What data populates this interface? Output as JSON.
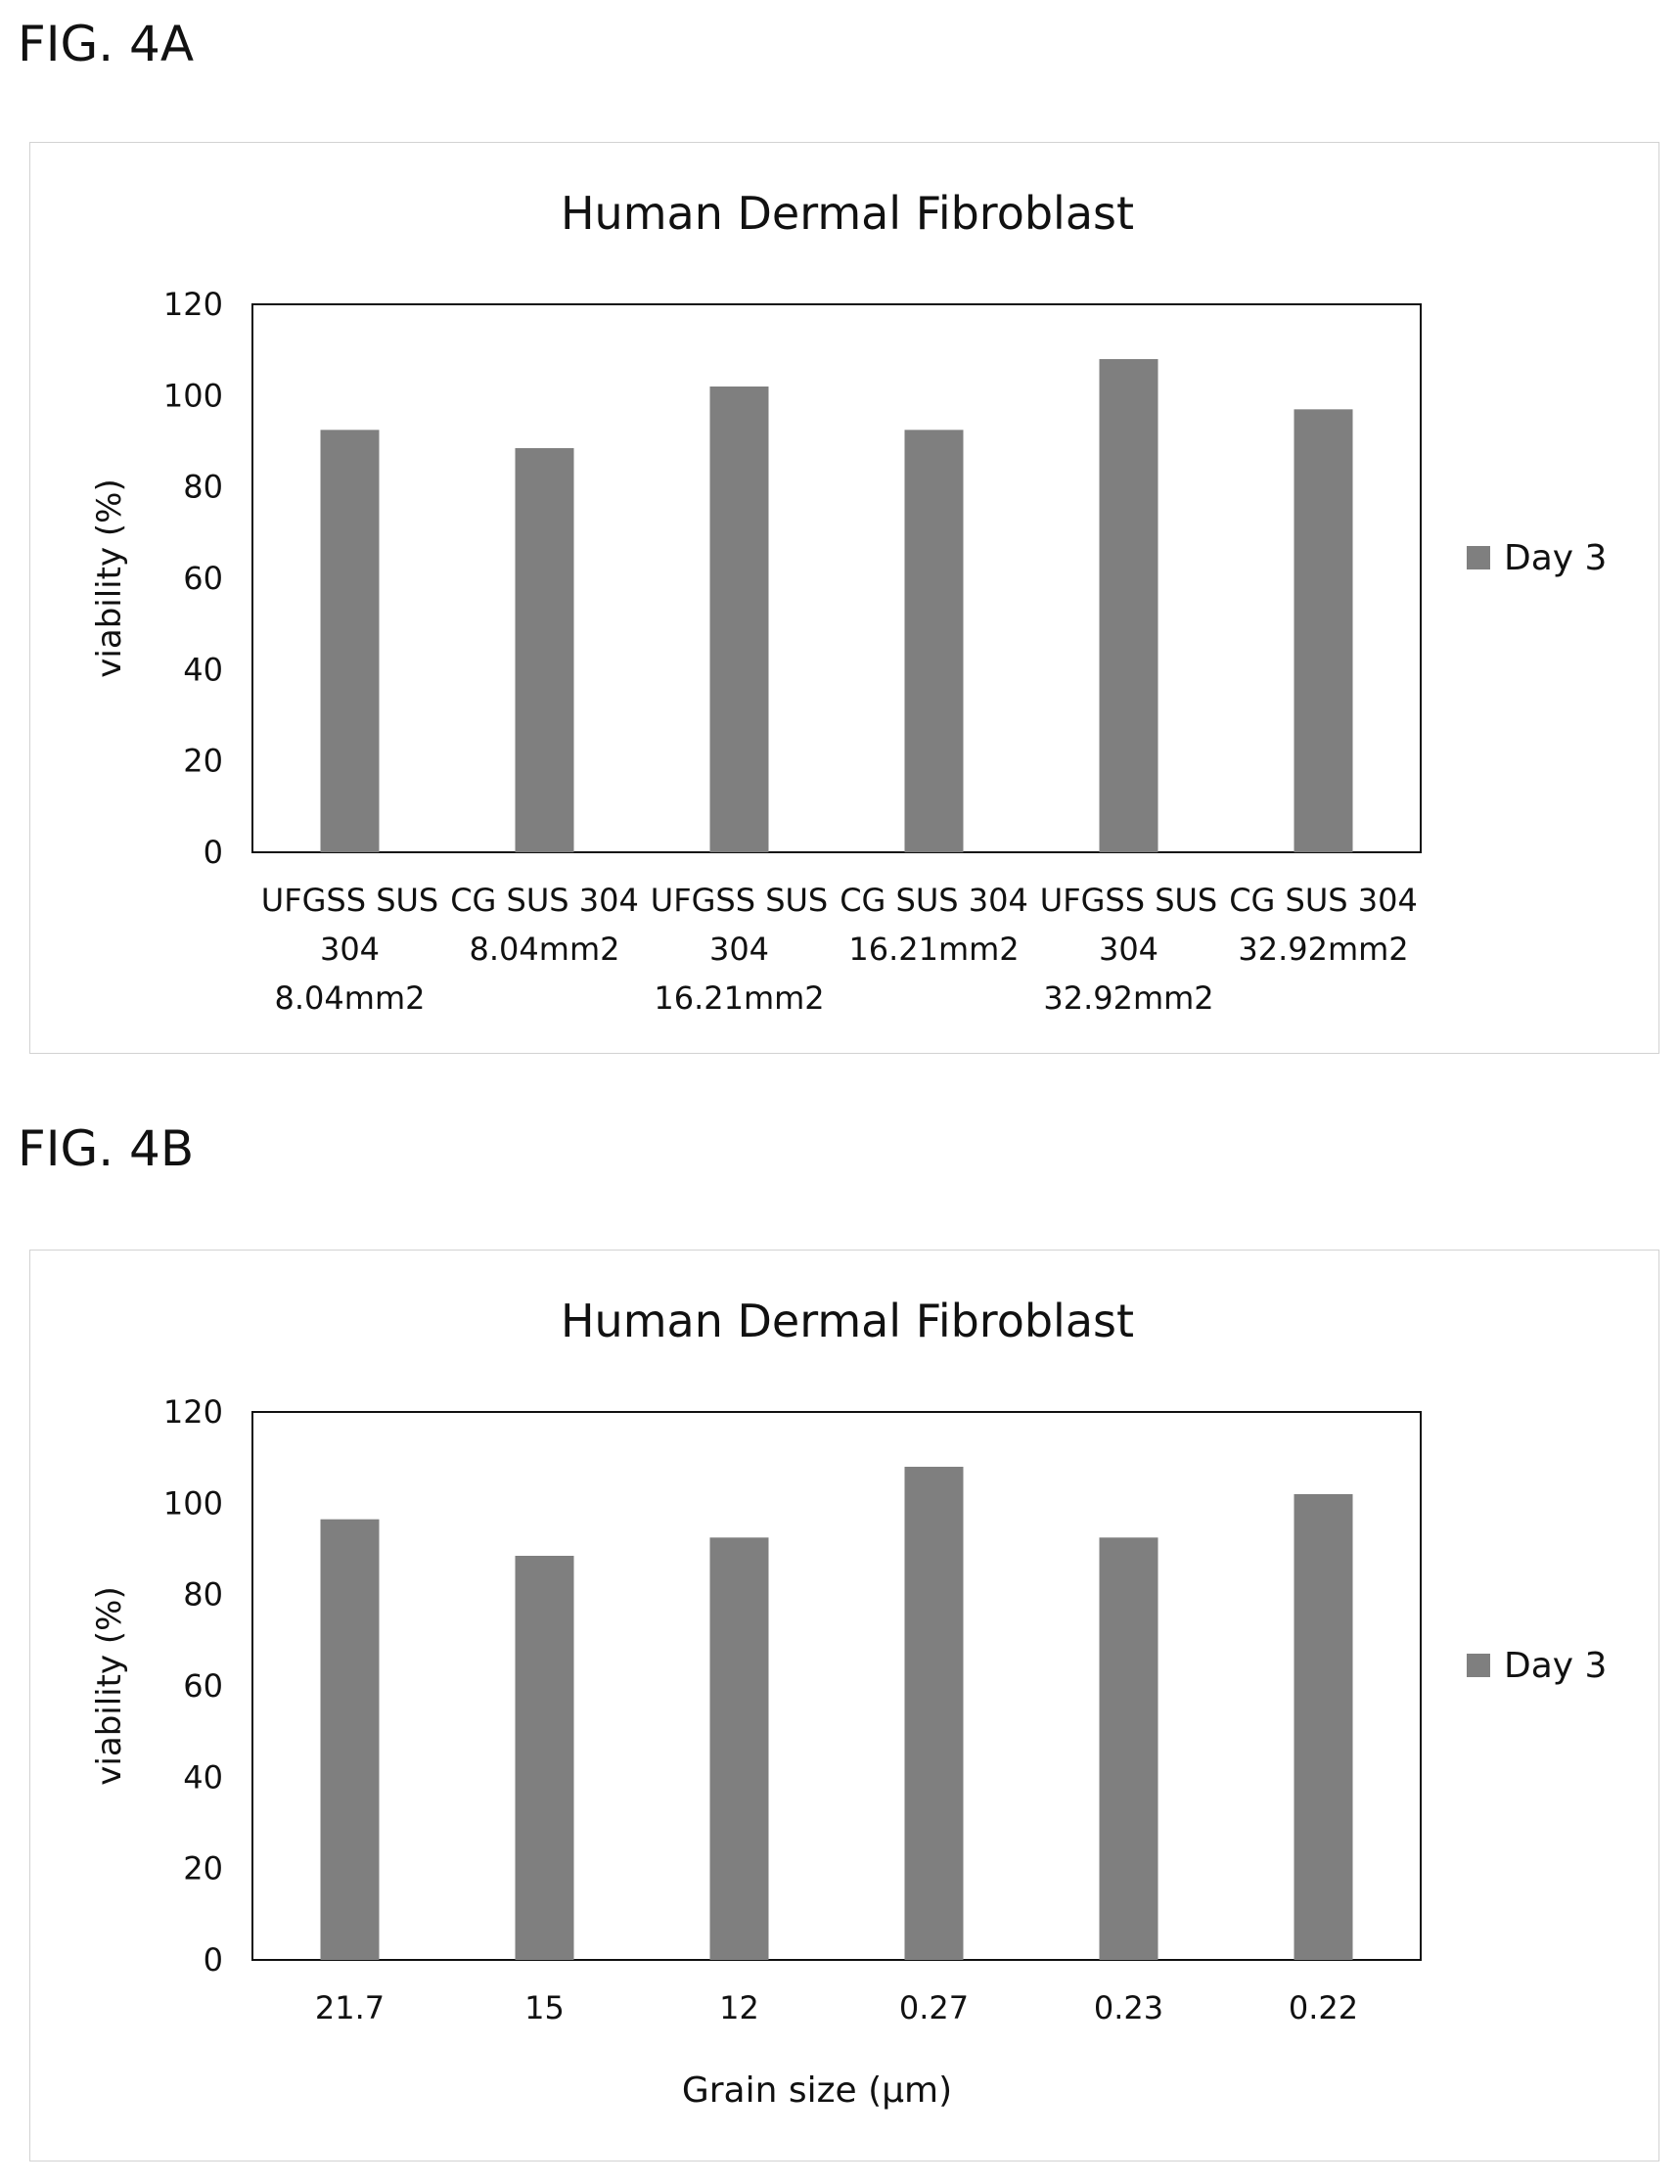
{
  "figures": [
    {
      "label": "FIG. 4A",
      "chart_data": {
        "type": "bar",
        "title": "Human Dermal Fibroblast",
        "ylabel": "viability (%)",
        "xlabel": "",
        "ylim": [
          0,
          120
        ],
        "yticks": [
          "0",
          "20",
          "40",
          "60",
          "80",
          "100",
          "120"
        ],
        "categories": [
          [
            "UFGSS SUS",
            "304",
            "8.04mm2"
          ],
          [
            "CG SUS 304",
            "8.04mm2"
          ],
          [
            "UFGSS SUS",
            "304",
            "16.21mm2"
          ],
          [
            "CG SUS 304",
            "16.21mm2"
          ],
          [
            "UFGSS SUS",
            "304",
            "32.92mm2"
          ],
          [
            "CG SUS 304",
            "32.92mm2"
          ]
        ],
        "series": [
          {
            "name": "Day 3",
            "values": [
              92.5,
              88.5,
              102,
              92.5,
              108,
              97
            ]
          }
        ],
        "legend": "right",
        "grid": false,
        "bar_color": "#7f7f7f"
      }
    },
    {
      "label": "FIG. 4B",
      "chart_data": {
        "type": "bar",
        "title": "Human Dermal Fibroblast",
        "ylabel": "viability (%)",
        "xlabel": "Grain size (μm)",
        "ylim": [
          0,
          120
        ],
        "yticks": [
          "0",
          "20",
          "40",
          "60",
          "80",
          "100",
          "120"
        ],
        "categories": [
          [
            "21.7"
          ],
          [
            "15"
          ],
          [
            "12"
          ],
          [
            "0.27"
          ],
          [
            "0.23"
          ],
          [
            "0.22"
          ]
        ],
        "series": [
          {
            "name": "Day 3",
            "values": [
              96.5,
              88.5,
              92.5,
              108,
              92.5,
              102
            ]
          }
        ],
        "legend": "right",
        "grid": false,
        "bar_color": "#7f7f7f"
      }
    }
  ]
}
